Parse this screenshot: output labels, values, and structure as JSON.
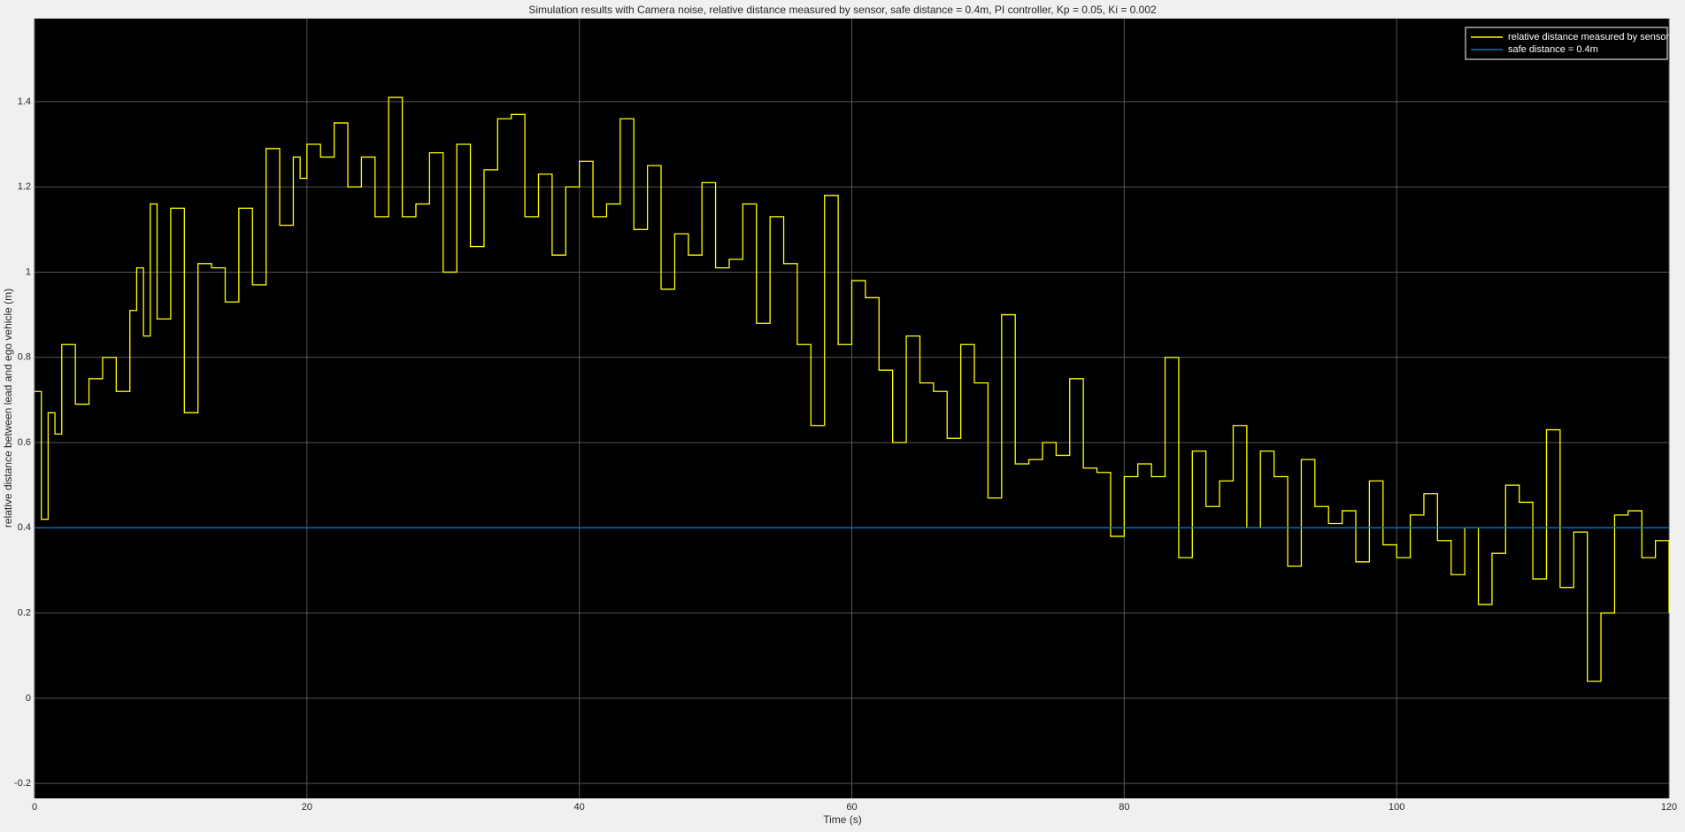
{
  "chart_data": {
    "type": "line",
    "step": "post",
    "title": "Simulation results with Camera noise, relative distance measured by sensor, safe distance = 0.4m, PI controller, Kp = 0.05, Ki = 0.002",
    "x_label": "Time (s)",
    "y_label": "relative distance between lead and ego vehicle (m)",
    "xlim": [
      0,
      120
    ],
    "ylim": [
      -0.235,
      1.595
    ],
    "xticks": [
      0,
      20,
      40,
      60,
      80,
      100,
      120
    ],
    "yticks": [
      -0.2,
      0,
      0.2,
      0.4,
      0.6,
      0.8,
      1,
      1.2,
      1.4
    ],
    "grid": true,
    "legend": "upper right",
    "background": "#000000",
    "series": [
      {
        "name": "relative distance measured by sensor",
        "color": "#ffff00",
        "x": [
          0,
          0.5,
          1,
          1.5,
          2,
          3,
          4,
          5,
          6,
          7,
          7.5,
          8,
          8.5,
          9,
          10,
          11,
          12,
          13,
          14,
          15,
          16,
          17,
          18,
          19,
          19.5,
          20,
          21,
          22,
          23,
          24,
          25,
          26,
          27,
          28,
          29,
          30,
          31,
          32,
          33,
          34,
          35,
          36,
          37,
          38,
          39,
          40,
          41,
          42,
          43,
          44,
          45,
          46,
          47,
          48,
          49,
          50,
          51,
          52,
          53,
          54,
          55,
          56,
          57,
          58,
          59,
          60,
          61,
          62,
          63,
          64,
          65,
          66,
          67,
          68,
          69,
          70,
          71,
          72,
          73,
          74,
          75,
          76,
          77,
          78,
          79,
          80,
          81,
          82,
          83,
          84,
          85,
          86,
          87,
          88,
          89,
          90,
          91,
          92,
          93,
          94,
          95,
          96,
          97,
          98,
          99,
          100,
          101,
          102,
          103,
          104,
          105,
          106,
          107,
          108,
          109,
          110,
          111,
          112,
          113,
          114,
          115,
          116,
          117,
          118,
          119,
          120
        ],
        "values": [
          0.72,
          0.42,
          0.67,
          0.62,
          0.83,
          0.69,
          0.75,
          0.8,
          0.72,
          0.91,
          1.01,
          0.85,
          1.16,
          0.89,
          1.15,
          0.67,
          1.02,
          1.01,
          0.93,
          1.15,
          0.97,
          1.29,
          1.11,
          1.27,
          1.22,
          1.3,
          1.27,
          1.35,
          1.2,
          1.27,
          1.13,
          1.41,
          1.13,
          1.16,
          1.28,
          1.0,
          1.3,
          1.06,
          1.24,
          1.36,
          1.37,
          1.13,
          1.23,
          1.04,
          1.2,
          1.26,
          1.13,
          1.16,
          1.36,
          1.1,
          1.25,
          0.96,
          1.09,
          1.04,
          1.21,
          1.01,
          1.03,
          1.16,
          0.88,
          1.13,
          1.02,
          0.83,
          0.64,
          1.18,
          0.83,
          0.98,
          0.94,
          0.77,
          0.6,
          0.85,
          0.74,
          0.72,
          0.61,
          0.83,
          0.74,
          0.47,
          0.9,
          0.55,
          0.56,
          0.6,
          0.57,
          0.75,
          0.54,
          0.53,
          0.38,
          0.52,
          0.55,
          0.52,
          0.8,
          0.33,
          0.58,
          0.45,
          0.51,
          0.64,
          0.4,
          0.58,
          0.52,
          0.31,
          0.56,
          0.45,
          0.41,
          0.44,
          0.32,
          0.51,
          0.36,
          0.33,
          0.43,
          0.48,
          0.37,
          0.29,
          0.4,
          0.22,
          0.34,
          0.5,
          0.46,
          0.28,
          0.63,
          0.26,
          0.39,
          0.04,
          0.2,
          0.43,
          0.44,
          0.33,
          0.37,
          0.2
        ]
      },
      {
        "name": "safe distance = 0.4m",
        "color": "#0072bd",
        "x": [
          0,
          120
        ],
        "values": [
          0.4,
          0.4
        ]
      }
    ]
  }
}
